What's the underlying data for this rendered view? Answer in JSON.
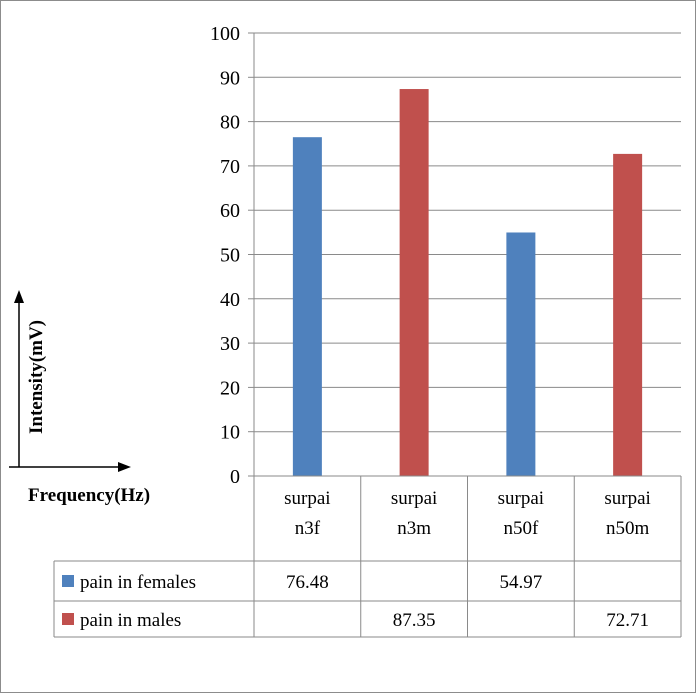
{
  "chart_data": {
    "type": "bar",
    "categories": [
      "surpain3f",
      "surpain3m",
      "surpain50f",
      "surpain50m"
    ],
    "category_lines": [
      [
        "surpai",
        "n3f"
      ],
      [
        "surpai",
        "n3m"
      ],
      [
        "surpai",
        "n50f"
      ],
      [
        "surpai",
        "n50m"
      ]
    ],
    "series": [
      {
        "name": "pain in females",
        "color": "#4f81bd",
        "values": [
          76.48,
          null,
          54.97,
          null
        ],
        "labels": [
          "76.48",
          "",
          "54.97",
          ""
        ]
      },
      {
        "name": "pain in males",
        "color": "#c0504d",
        "values": [
          null,
          87.35,
          null,
          72.71
        ],
        "labels": [
          "",
          "87.35",
          "",
          "72.71"
        ]
      }
    ],
    "xlabel": "Frequency(Hz)",
    "ylabel": "Intensity(mV)",
    "ylim": [
      0,
      100
    ],
    "yticks": [
      0,
      10,
      20,
      30,
      40,
      50,
      60,
      70,
      80,
      90,
      100
    ],
    "grid": true,
    "legend": "data-table"
  }
}
